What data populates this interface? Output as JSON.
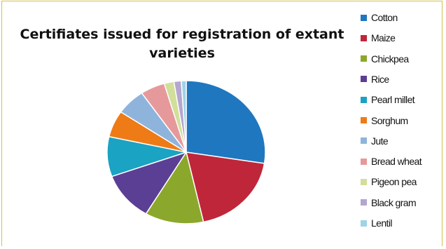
{
  "chart_data": {
    "type": "pie",
    "title": "Certifiates issued for registration of extant varieties",
    "legend_position": "right",
    "categories": [
      "Cotton",
      "Maize",
      "Chickpea",
      "Rice",
      "Pearl millet",
      "Sorghum",
      "Jute",
      "Bread wheat",
      "Pigeon pea",
      "Black gram",
      "Lentil"
    ],
    "values": [
      27.5,
      19.0,
      12.0,
      11.0,
      9.0,
      6.0,
      6.0,
      5.0,
      2.0,
      1.5,
      1.0
    ],
    "colors": [
      "#1f77c0",
      "#c0263a",
      "#8ca82c",
      "#5b3f95",
      "#1aa3c2",
      "#ee7b16",
      "#8fb4dc",
      "#e6999b",
      "#d2df9a",
      "#b5a6cf",
      "#9fd3e6"
    ]
  },
  "legend_labels": [
    "Cotton",
    "Maize",
    "Chickpea",
    "Rice",
    "Pearl millet",
    "Sorghum",
    "Jute",
    "Bread wheat",
    "Pigeon pea",
    "Black gram",
    "Lentil"
  ]
}
